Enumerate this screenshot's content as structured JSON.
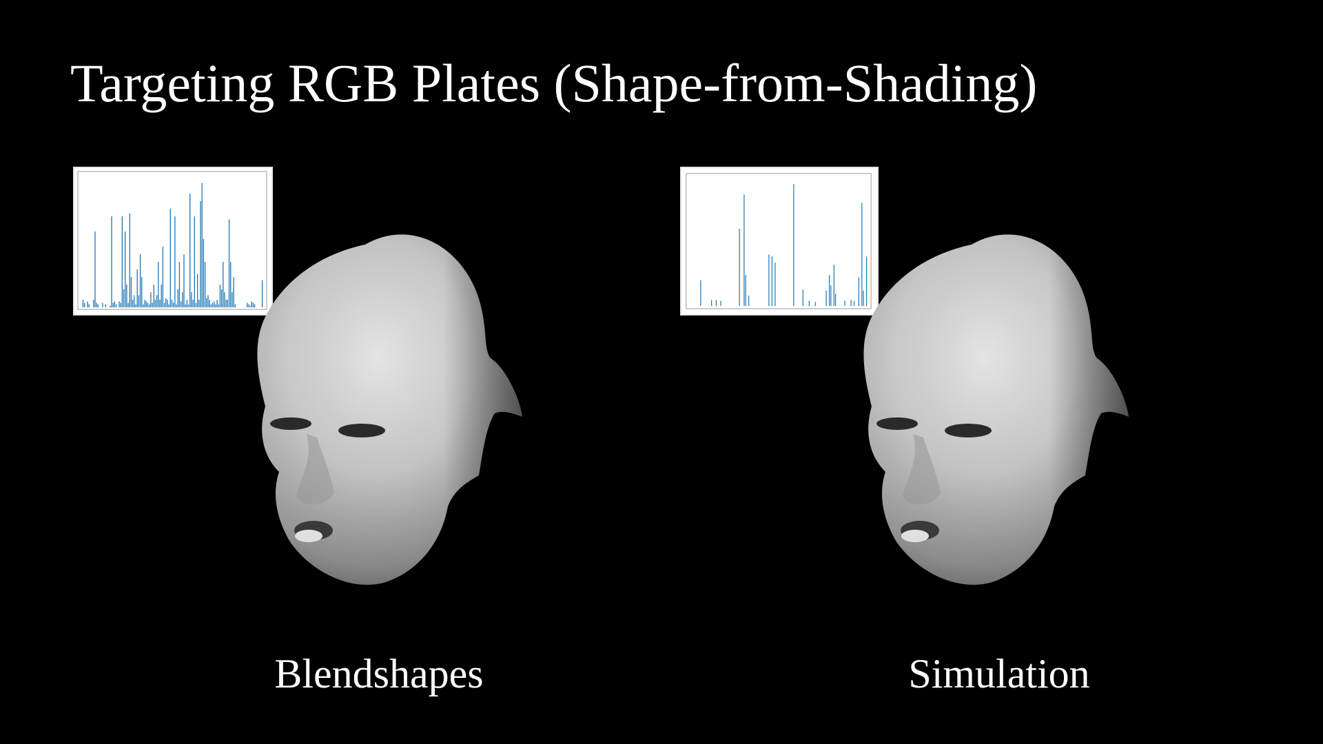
{
  "title": "Targeting RGB Plates (Shape-from-Shading)",
  "panels": [
    {
      "caption": "Blendshapes",
      "chart_data": {
        "type": "bar",
        "color": "#1f77b4",
        "values": [
          0.05,
          0.03,
          0,
          0.04,
          0.02,
          0,
          0,
          0.05,
          0.5,
          0.03,
          0.02,
          0,
          0,
          0.03,
          0,
          0.02,
          0,
          0,
          0.01,
          0.6,
          0.03,
          0.04,
          0.02,
          0,
          0.04,
          0.03,
          0.6,
          0.12,
          0.5,
          0.15,
          0.03,
          0.62,
          0.2,
          0.05,
          0.08,
          0.02,
          0.25,
          0.08,
          0.35,
          0.2,
          0.02,
          0.05,
          0.04,
          0.03,
          0.02,
          0.1,
          0.03,
          0.15,
          0.05,
          0.08,
          0.3,
          0.05,
          0.15,
          0.4,
          0.03,
          0.06,
          0.05,
          0.02,
          0.65,
          0.05,
          0.03,
          0.6,
          0.02,
          0.12,
          0.3,
          0.04,
          0.1,
          0.35,
          0.02,
          0.05,
          0.02,
          0.75,
          0.1,
          0.05,
          0.6,
          0.03,
          0.22,
          0.05,
          0.7,
          0.82,
          0.45,
          0.3,
          0.06,
          0.08,
          0.05,
          0.02,
          0.03,
          0.04,
          0.02,
          0.05,
          0.02,
          0.15,
          0.12,
          0.3,
          0.1,
          0.05,
          0.05,
          0.58,
          0.3,
          0.1,
          0.2,
          0.02,
          0,
          0,
          0,
          0,
          0,
          0,
          0,
          0.03,
          0.02,
          0.01,
          0.04,
          0.03,
          0.02,
          0,
          0,
          0,
          0,
          0.18
        ]
      }
    },
    {
      "caption": "Simulation",
      "chart_data": {
        "type": "bar",
        "color": "#1f77b4",
        "values": [
          0,
          0,
          0,
          0,
          0,
          0,
          0.25,
          0,
          0,
          0,
          0,
          0,
          0,
          0.06,
          0,
          0,
          0.06,
          0,
          0,
          0.05,
          0,
          0,
          0,
          0,
          0,
          0,
          0,
          0,
          0,
          0,
          0,
          0.75,
          0,
          0,
          1.08,
          0.3,
          0,
          0.1,
          0,
          0,
          0,
          0,
          0,
          0,
          0,
          0,
          0,
          0,
          0,
          0,
          0.5,
          0,
          0.48,
          0,
          0.42,
          0,
          0,
          0,
          0,
          0,
          0,
          0,
          0,
          0,
          0,
          0,
          1.18,
          0,
          0,
          0,
          0,
          0,
          0.16,
          0,
          0,
          0,
          0.05,
          0,
          0,
          0,
          0.04,
          0,
          0,
          0,
          0,
          0,
          0,
          0.15,
          0,
          0.3,
          0.2,
          0,
          0.4,
          0.12,
          0,
          0,
          0,
          0,
          0,
          0.05,
          0,
          0,
          0,
          0.06,
          0,
          0.05,
          0,
          0,
          0.28,
          0,
          1.0,
          0.15,
          0,
          0.48
        ]
      }
    }
  ]
}
